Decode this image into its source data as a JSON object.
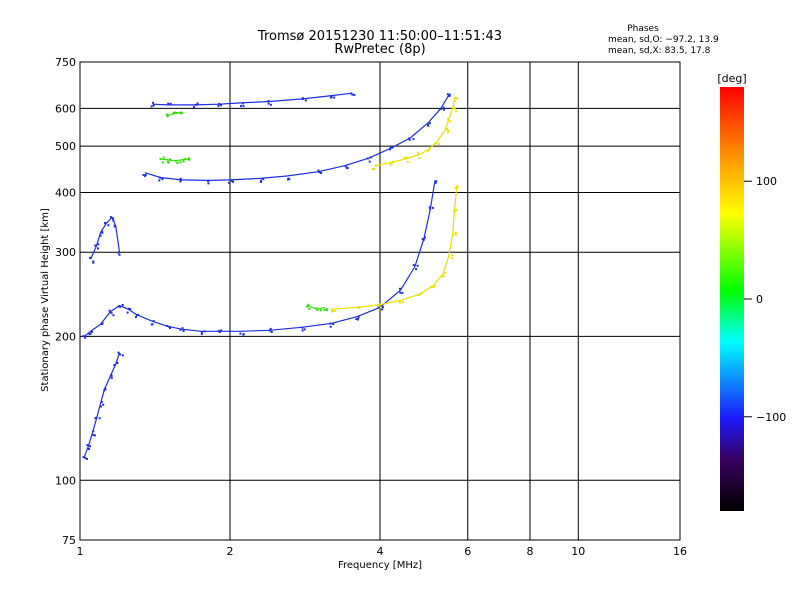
{
  "chart_data": {
    "type": "scatter",
    "title": "Tromsø 20151230 11:50:00–11:51:43",
    "subtitle": "RwPretec (8p)",
    "xlabel": "Frequency [MHz]",
    "ylabel": "Stationary phase Virtual Height [km]",
    "xscale": "log",
    "yscale": "log",
    "xlim": [
      1,
      16
    ],
    "ylim": [
      75,
      750
    ],
    "x_ticks": [
      1,
      2,
      4,
      6,
      8,
      10,
      16
    ],
    "x_tick_labels": [
      "1",
      "2",
      "4",
      "6",
      "8",
      "10",
      "16"
    ],
    "y_ticks": [
      75,
      100,
      200,
      300,
      400,
      500,
      600,
      750
    ],
    "y_tick_labels": [
      "75",
      "100",
      "200",
      "300",
      "400",
      "500",
      "600",
      "750"
    ],
    "grid": true,
    "stats_block": {
      "heading": "Phases",
      "lines": [
        "mean, sd,O: −97.2, 13.9",
        "mean, sd,X:  83.5, 17.8"
      ]
    },
    "colorbar": {
      "label": "[deg]",
      "range": [
        -180,
        180
      ],
      "ticks": [
        100,
        0,
        -100
      ],
      "tick_labels": [
        "100",
        "0",
        "−100"
      ],
      "placement": "right"
    },
    "series": [
      {
        "mode": "O",
        "phase_deg": -97,
        "color": "#1e2ee0",
        "traces": [
          {
            "x": [
              1.02,
              1.05,
              1.1,
              1.15,
              1.2,
              1.25,
              1.3,
              1.4,
              1.5,
              1.6,
              1.75,
              1.9,
              2.1,
              2.4,
              2.8,
              3.2,
              3.6,
              4.0,
              4.4,
              4.7,
              4.9,
              5.05,
              5.15
            ],
            "y": [
              200,
              205,
              212,
              225,
              232,
              228,
              222,
              215,
              210,
              207,
              205,
              205,
              205,
              206,
              209,
              213,
              220,
              230,
              250,
              280,
              320,
              370,
              420
            ]
          },
          {
            "x": [
              1.35,
              1.45,
              1.6,
              1.8,
              2.0,
              2.3,
              2.6,
              3.0,
              3.4,
              3.8,
              4.2,
              4.6,
              5.0,
              5.3,
              5.5
            ],
            "y": [
              440,
              430,
              425,
              424,
              425,
              428,
              433,
              442,
              455,
              472,
              495,
              520,
              560,
              600,
              640
            ]
          },
          {
            "x": [
              1.4,
              1.5,
              1.7,
              1.9,
              2.1,
              2.4,
              2.8,
              3.2,
              3.5
            ],
            "y": [
              612,
              610,
              610,
              612,
              616,
              620,
              628,
              638,
              645
            ]
          },
          {
            "x": [
              1.02,
              1.04,
              1.06,
              1.08,
              1.1,
              1.12,
              1.15,
              1.18,
              1.2
            ],
            "y": [
              112,
              118,
              126,
              135,
              145,
              155,
              165,
              175,
              185
            ]
          },
          {
            "x": [
              1.05,
              1.08,
              1.1,
              1.13,
              1.16,
              1.18,
              1.2
            ],
            "y": [
              290,
              310,
              330,
              345,
              355,
              340,
              300
            ]
          }
        ]
      },
      {
        "mode": "X",
        "phase_deg": 100,
        "color": "#e8e000",
        "traces": [
          {
            "x": [
              3.2,
              3.6,
              4.0,
              4.4,
              4.8,
              5.1,
              5.35,
              5.5,
              5.6,
              5.65,
              5.7
            ],
            "y": [
              228,
              230,
              233,
              238,
              245,
              255,
              270,
              295,
              330,
              370,
              410
            ]
          },
          {
            "x": [
              3.9,
              4.2,
              4.5,
              4.8,
              5.0,
              5.2,
              5.4,
              5.5,
              5.6,
              5.65
            ],
            "y": [
              455,
              462,
              470,
              480,
              492,
              510,
              540,
              570,
              600,
              630
            ]
          }
        ]
      },
      {
        "mode": "misc",
        "phase_deg": 20,
        "color": "#30e000",
        "traces": [
          {
            "x": [
              1.45,
              1.5,
              1.55,
              1.6,
              1.65
            ],
            "y": [
              470,
              468,
              466,
              468,
              470
            ]
          },
          {
            "x": [
              1.5,
              1.55,
              1.6
            ],
            "y": [
              580,
              585,
              590
            ]
          },
          {
            "x": [
              2.85,
              3.0,
              3.1
            ],
            "y": [
              232,
              228,
              230
            ]
          }
        ]
      }
    ]
  }
}
